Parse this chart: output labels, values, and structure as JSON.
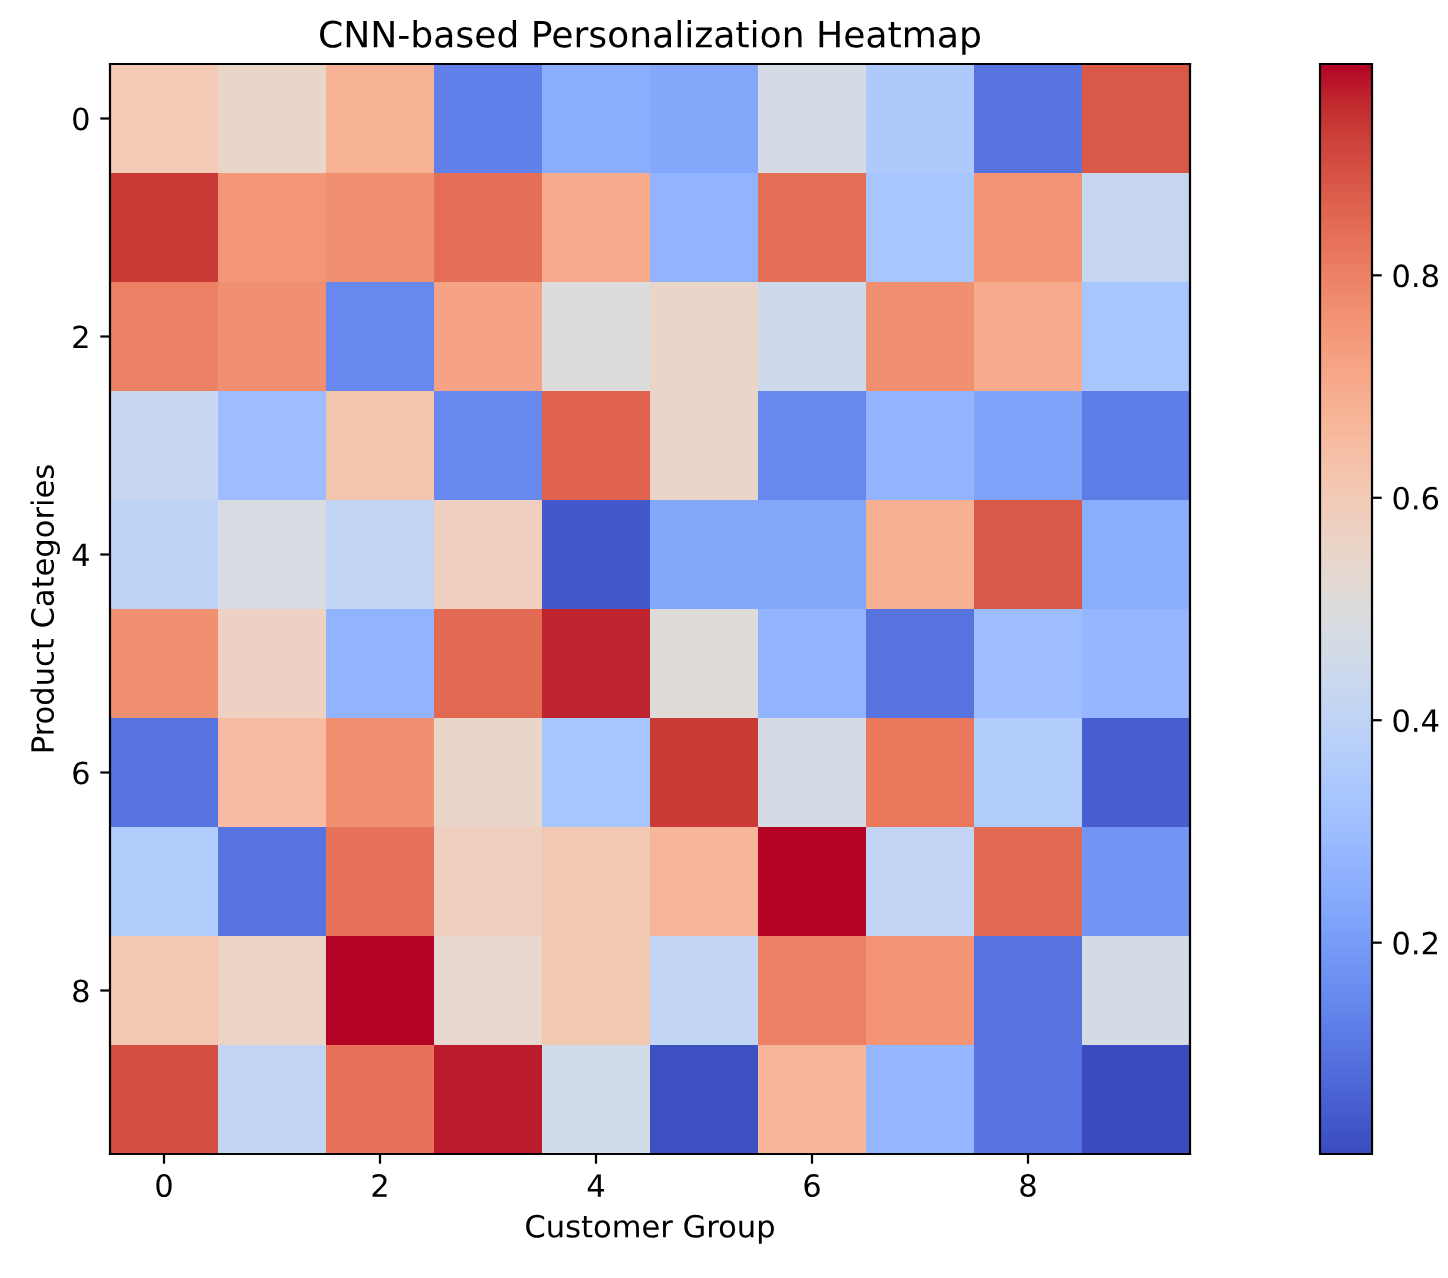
{
  "chart_data": {
    "type": "heatmap",
    "title": "CNN-based Personalization Heatmap",
    "xlabel": "Customer Group",
    "ylabel": "Product Categories",
    "categories": [
      "0",
      null,
      "2",
      null,
      "4",
      null,
      "6",
      null,
      "8",
      null
    ],
    "y_categories": [
      "0",
      null,
      "2",
      null,
      "4",
      null,
      "6",
      null,
      "8",
      null
    ],
    "cells": [
      [
        0.6,
        0.55,
        0.68,
        0.13,
        0.25,
        0.23,
        0.47,
        0.35,
        0.1,
        0.88
      ],
      [
        0.93,
        0.75,
        0.77,
        0.84,
        0.7,
        0.27,
        0.84,
        0.33,
        0.76,
        0.42
      ],
      [
        0.8,
        0.77,
        0.15,
        0.72,
        0.5,
        0.55,
        0.45,
        0.77,
        0.7,
        0.33
      ],
      [
        0.43,
        0.3,
        0.62,
        0.15,
        0.86,
        0.55,
        0.15,
        0.27,
        0.22,
        0.12
      ],
      [
        0.4,
        0.48,
        0.41,
        0.58,
        0.04,
        0.23,
        0.23,
        0.69,
        0.88,
        0.25
      ],
      [
        0.77,
        0.57,
        0.27,
        0.85,
        0.96,
        0.51,
        0.27,
        0.1,
        0.3,
        0.28
      ],
      [
        0.1,
        0.65,
        0.77,
        0.55,
        0.33,
        0.93,
        0.47,
        0.82,
        0.36,
        0.05
      ],
      [
        0.36,
        0.1,
        0.83,
        0.58,
        0.61,
        0.67,
        0.99,
        0.41,
        0.85,
        0.18
      ],
      [
        0.61,
        0.56,
        0.99,
        0.54,
        0.61,
        0.41,
        0.8,
        0.76,
        0.1,
        0.47
      ],
      [
        0.9,
        0.41,
        0.83,
        0.97,
        0.46,
        0.02,
        0.67,
        0.28,
        0.1,
        0.01
      ]
    ],
    "clim": [
      0.01,
      0.99
    ],
    "cticks": [
      0.2,
      0.4,
      0.6,
      0.8
    ],
    "grid": false
  }
}
